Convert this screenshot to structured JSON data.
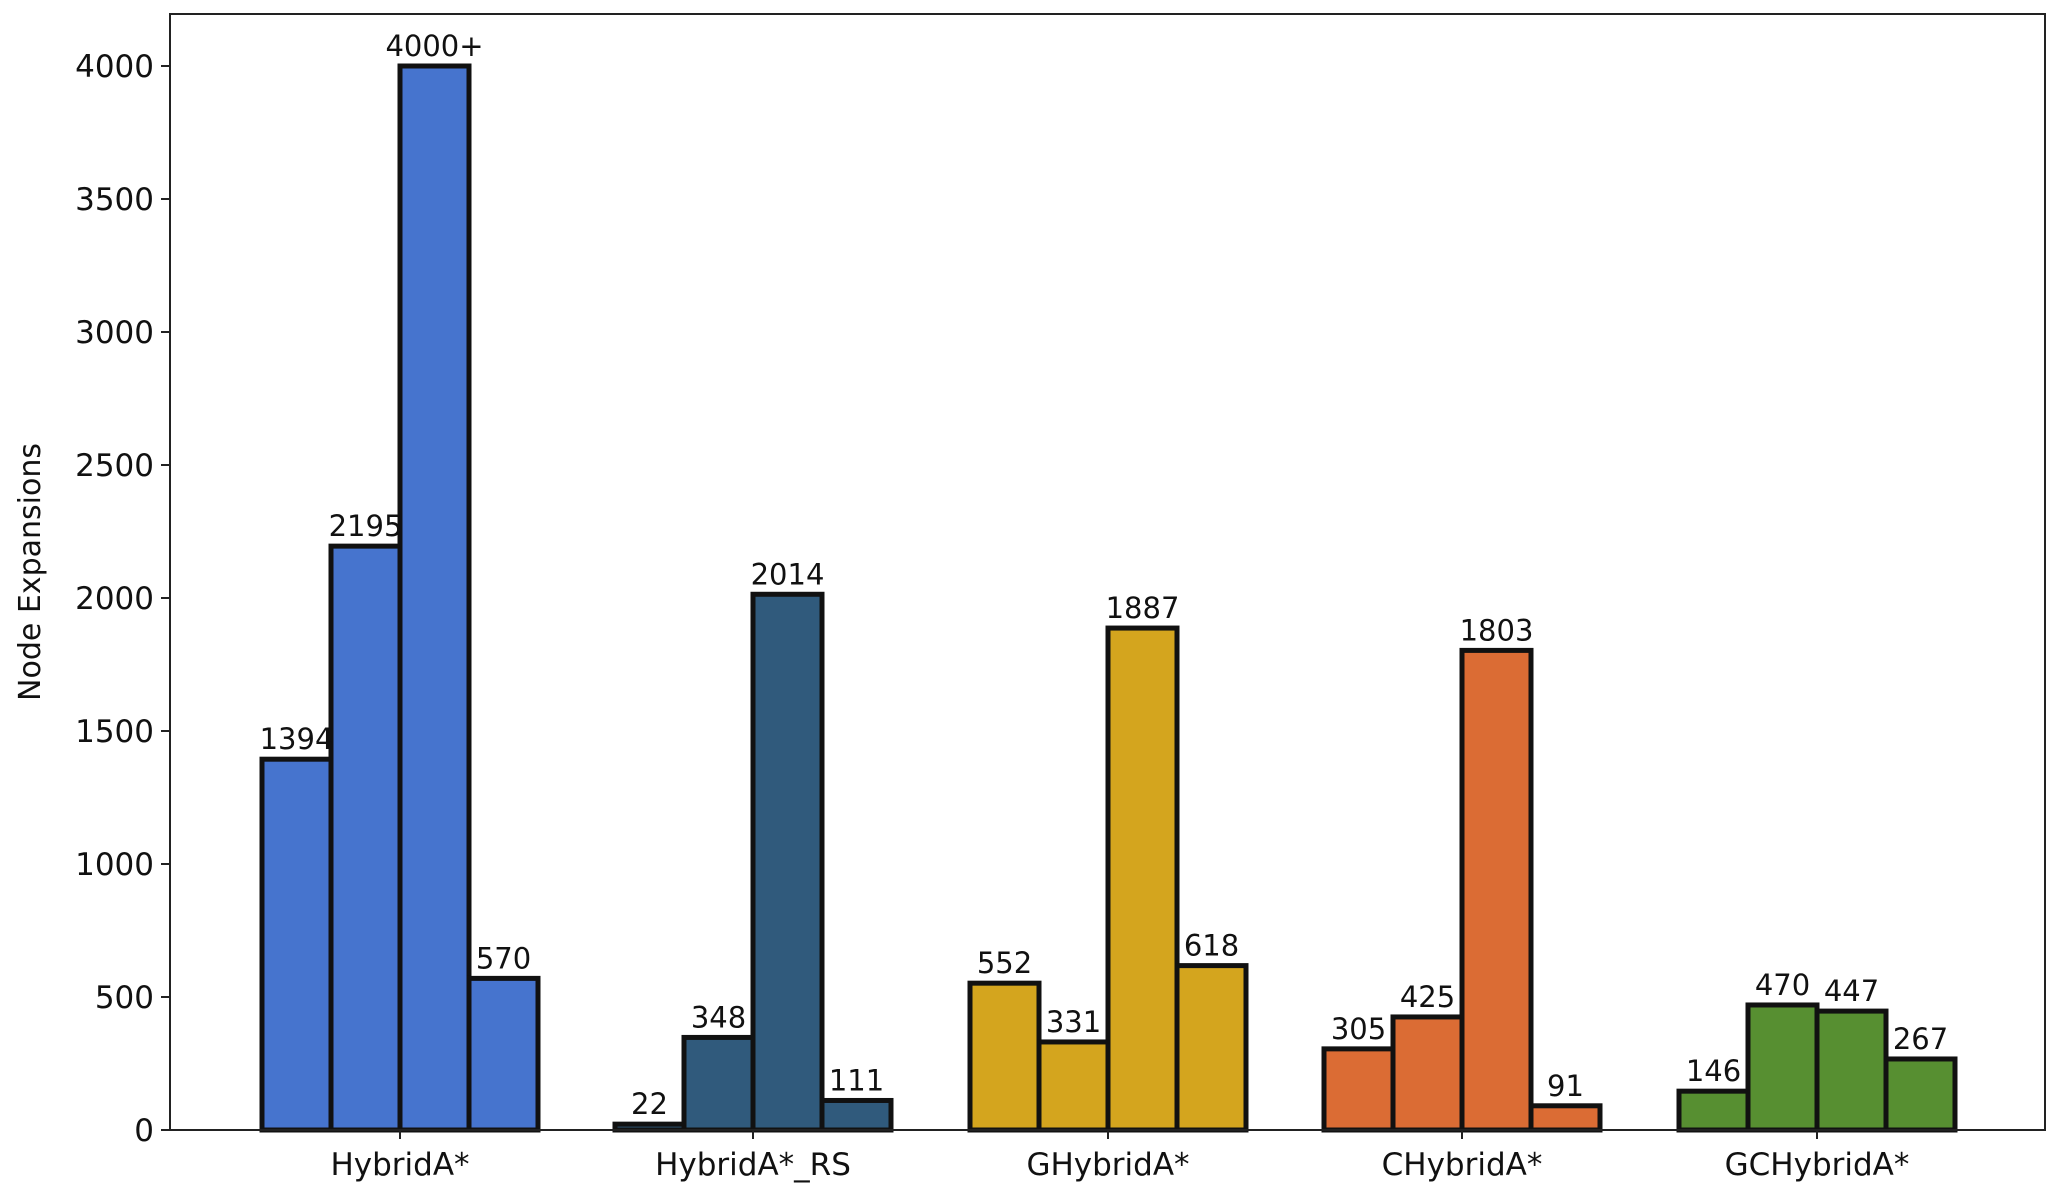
{
  "chart_data": {
    "type": "bar",
    "title": "",
    "xlabel": "",
    "ylabel": "Node Expansions",
    "ylim": [
      0,
      4250
    ],
    "yticks": [
      0,
      500,
      1000,
      1500,
      2000,
      2500,
      3000,
      3500,
      4000
    ],
    "grid": false,
    "legend": "none",
    "groups": [
      {
        "name": "HybridA*",
        "color": "#4674CE",
        "values": [
          1394,
          2195,
          4000,
          570
        ],
        "labels": [
          "1394",
          "2195",
          "4000+",
          "570"
        ]
      },
      {
        "name": "HybridA*_RS",
        "color": "#305A7C",
        "values": [
          22,
          348,
          2014,
          111
        ],
        "labels": [
          "22",
          "348",
          "2014",
          "111"
        ]
      },
      {
        "name": "GHybridA*",
        "color": "#D4A51E",
        "values": [
          552,
          331,
          1887,
          618
        ],
        "labels": [
          "552",
          "331",
          "1887",
          "618"
        ]
      },
      {
        "name": "CHybridA*",
        "color": "#DB6C34",
        "values": [
          305,
          425,
          1803,
          91
        ],
        "labels": [
          "305",
          "425",
          "1803",
          "91"
        ]
      },
      {
        "name": "GCHybridA*",
        "color": "#578F31",
        "values": [
          146,
          470,
          447,
          267
        ],
        "labels": [
          "146",
          "470",
          "447",
          "267"
        ]
      }
    ]
  }
}
